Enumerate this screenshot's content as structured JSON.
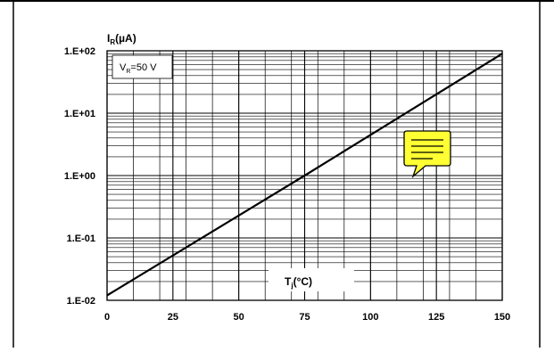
{
  "chart_data": {
    "type": "line",
    "ylabel_main": "I",
    "ylabel_sub": "R",
    "ylabel_unit": "(µA)",
    "xlabel_main": "T",
    "xlabel_sub": "j",
    "xlabel_unit": "(°C)",
    "annotation_main": "V",
    "annotation_sub": "R",
    "annotation_value": "=50 V",
    "xlim": [
      0,
      150
    ],
    "ylim": [
      0.01,
      100
    ],
    "y_scale": "log",
    "x_ticks": [
      0,
      25,
      50,
      75,
      100,
      125,
      150
    ],
    "x_tick_labels": [
      "0",
      "25",
      "50",
      "75",
      "100",
      "125",
      "150"
    ],
    "y_ticks": [
      0.01,
      0.1,
      1,
      10,
      100
    ],
    "y_tick_labels": [
      "1.E-02",
      "1.E-01",
      "1.E+00",
      "1.E+01",
      "1.E+02"
    ],
    "grid": true,
    "series": [
      {
        "x": [
          0,
          75,
          150
        ],
        "y": [
          0.012,
          1.0,
          90
        ]
      }
    ],
    "colors": {
      "line": "#000000",
      "grid": "#000000",
      "note_fill": "#ffff33",
      "note_stroke": "#000000"
    },
    "icons": {
      "note": "speech-bubble-note-icon"
    }
  }
}
